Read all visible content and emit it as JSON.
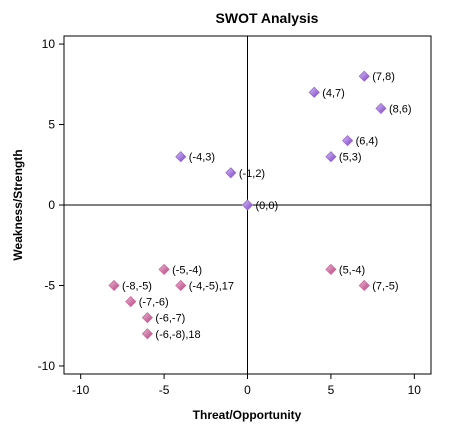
{
  "chart_data": {
    "type": "scatter",
    "title": "SWOT Analysis",
    "xlabel": "Threat/Opportunity",
    "ylabel": "Weakness/Strength",
    "xlim": [
      -11,
      11
    ],
    "ylim": [
      -10.5,
      10.5
    ],
    "xticks": [
      -10,
      -5,
      0,
      5,
      10
    ],
    "yticks": [
      10,
      5,
      0,
      -5,
      -10
    ],
    "xtick_labels": [
      "-10",
      "-5",
      "0",
      "5",
      "10"
    ],
    "ytick_labels": [
      "10",
      "5",
      "0",
      "-5",
      "-10"
    ],
    "grid": false,
    "legend": "none",
    "marker": "diamond",
    "colors": {
      "upper_marker": "#9966cc",
      "lower_marker": "#cc6699",
      "axis": "#000000",
      "background": "#ffffff"
    },
    "points": [
      {
        "x": 7,
        "y": 8,
        "label": "(7,8)"
      },
      {
        "x": 4,
        "y": 7,
        "label": "(4,7)"
      },
      {
        "x": 8,
        "y": 6,
        "label": "(8,6)"
      },
      {
        "x": 6,
        "y": 4,
        "label": "(6,4)"
      },
      {
        "x": 5,
        "y": 3,
        "label": "(5,3)"
      },
      {
        "x": -4,
        "y": 3,
        "label": "(-4,3)"
      },
      {
        "x": -1,
        "y": 2,
        "label": "(-1,2)"
      },
      {
        "x": 0,
        "y": 0,
        "label": "(0,0)"
      },
      {
        "x": 5,
        "y": -4,
        "label": "(5,-4)"
      },
      {
        "x": 7,
        "y": -5,
        "label": "(7,-5)"
      },
      {
        "x": -5,
        "y": -4,
        "label": "(-5,-4)"
      },
      {
        "x": -8,
        "y": -5,
        "label": "(-8,-5)"
      },
      {
        "x": -4,
        "y": -5,
        "label": "(-4,-5),17"
      },
      {
        "x": -7,
        "y": -6,
        "label": "(-7,-6)"
      },
      {
        "x": -6,
        "y": -7,
        "label": "(-6,-7)"
      },
      {
        "x": -6,
        "y": -8,
        "label": "(-6,-8),18"
      }
    ]
  }
}
